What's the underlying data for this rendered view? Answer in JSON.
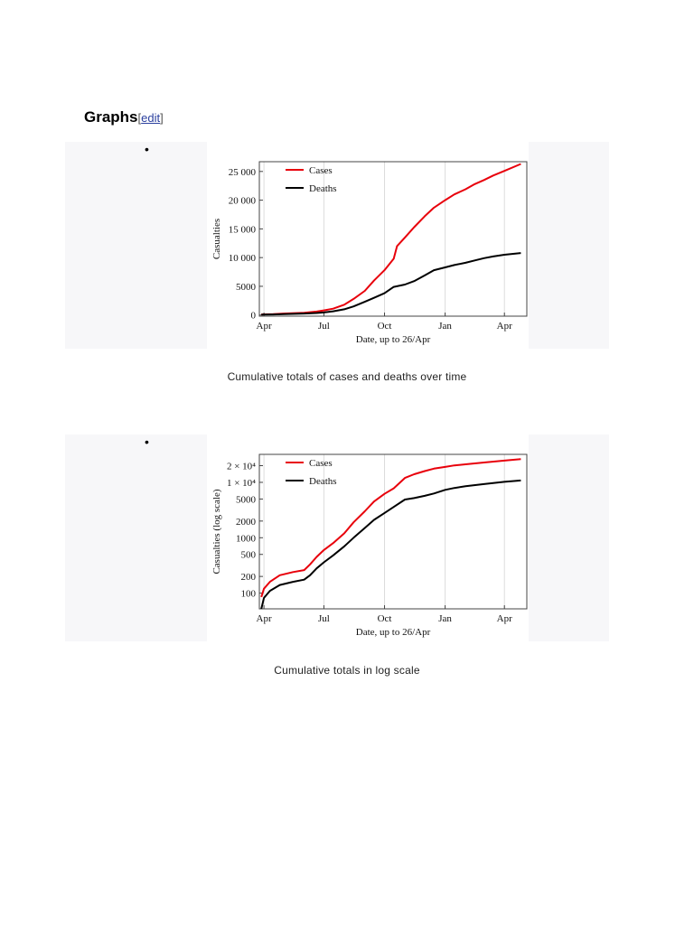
{
  "section": {
    "title": "Graphs",
    "edit_open": "[",
    "edit_link": "edit",
    "edit_close": "]"
  },
  "gallery": [
    {
      "bullet": "•",
      "caption": "Cumulative totals of cases and deaths over time"
    },
    {
      "bullet": "•",
      "caption": "Cumulative totals in log scale"
    }
  ],
  "chart_data": [
    {
      "type": "line",
      "xlabel": "Date, up to 26/Apr",
      "ylabel": "Casualties",
      "x_ticks": [
        "Apr",
        "Jul",
        "Oct",
        "Jan",
        "Apr"
      ],
      "x_tick_dates": [
        "2014-04-01",
        "2014-07-01",
        "2014-10-01",
        "2015-01-01",
        "2015-04-01"
      ],
      "x_range": [
        "2014-03-25",
        "2015-05-05"
      ],
      "y_ticks": [
        "0",
        "5000",
        "10 000",
        "15 000",
        "20 000",
        "25 000"
      ],
      "y_tick_values": [
        0,
        5000,
        10000,
        15000,
        20000,
        25000
      ],
      "ylim": [
        -200,
        26700
      ],
      "y_scale": "linear",
      "grid": "vertical",
      "legend_position": "top-left",
      "series": [
        {
          "name": "Cases",
          "color": "#e8000b",
          "x": [
            "2014-03-28",
            "2014-04-15",
            "2014-05-01",
            "2014-06-01",
            "2014-06-20",
            "2014-07-01",
            "2014-07-15",
            "2014-08-01",
            "2014-08-15",
            "2014-09-01",
            "2014-09-15",
            "2014-10-01",
            "2014-10-15",
            "2014-10-20",
            "2014-11-01",
            "2014-11-15",
            "2014-12-01",
            "2014-12-15",
            "2015-01-01",
            "2015-01-15",
            "2015-02-01",
            "2015-02-15",
            "2015-03-01",
            "2015-03-15",
            "2015-04-01",
            "2015-04-26"
          ],
          "y": [
            100,
            150,
            250,
            400,
            600,
            800,
            1100,
            1800,
            2800,
            4200,
            6000,
            7800,
            9800,
            12000,
            13500,
            15300,
            17200,
            18700,
            20000,
            21000,
            21900,
            22800,
            23500,
            24300,
            25100,
            26300
          ]
        },
        {
          "name": "Deaths",
          "color": "#000000",
          "x": [
            "2014-03-28",
            "2014-04-15",
            "2014-05-01",
            "2014-06-01",
            "2014-06-20",
            "2014-07-01",
            "2014-07-15",
            "2014-08-01",
            "2014-08-15",
            "2014-09-01",
            "2014-09-15",
            "2014-10-01",
            "2014-10-15",
            "2014-11-01",
            "2014-11-15",
            "2014-12-01",
            "2014-12-15",
            "2015-01-01",
            "2015-01-15",
            "2015-02-01",
            "2015-02-15",
            "2015-03-01",
            "2015-03-15",
            "2015-04-01",
            "2015-04-26"
          ],
          "y": [
            60,
            100,
            150,
            250,
            350,
            450,
            650,
            1000,
            1500,
            2300,
            3000,
            3800,
            4900,
            5300,
            5900,
            6900,
            7800,
            8300,
            8700,
            9100,
            9500,
            9900,
            10200,
            10500,
            10800
          ]
        }
      ]
    },
    {
      "type": "line",
      "xlabel": "Date, up to 26/Apr",
      "ylabel": "Casualties (log scale)",
      "x_ticks": [
        "Apr",
        "Jul",
        "Oct",
        "Jan",
        "Apr"
      ],
      "x_tick_dates": [
        "2014-04-01",
        "2014-07-01",
        "2014-10-01",
        "2015-01-01",
        "2015-04-01"
      ],
      "x_range": [
        "2014-03-25",
        "2015-05-05"
      ],
      "y_ticks": [
        "100",
        "200",
        "500",
        "1000",
        "2000",
        "5000",
        "1 × 10⁴",
        "2 × 10⁴"
      ],
      "y_tick_values": [
        100,
        200,
        500,
        1000,
        2000,
        5000,
        10000,
        20000
      ],
      "ylim": [
        52,
        32000
      ],
      "y_scale": "log",
      "grid": "vertical",
      "legend_position": "top-left",
      "series": [
        {
          "name": "Cases",
          "color": "#e8000b",
          "x": [
            "2014-03-28",
            "2014-04-01",
            "2014-04-10",
            "2014-04-25",
            "2014-05-15",
            "2014-06-01",
            "2014-06-10",
            "2014-06-20",
            "2014-07-01",
            "2014-07-15",
            "2014-08-01",
            "2014-08-15",
            "2014-09-01",
            "2014-09-15",
            "2014-10-01",
            "2014-10-15",
            "2014-11-01",
            "2014-11-15",
            "2014-12-01",
            "2014-12-15",
            "2015-01-01",
            "2015-01-15",
            "2015-02-01",
            "2015-03-01",
            "2015-04-01",
            "2015-04-26"
          ],
          "y": [
            85,
            120,
            160,
            210,
            240,
            260,
            330,
            450,
            600,
            800,
            1200,
            1900,
            3000,
            4500,
            6200,
            7800,
            12000,
            14000,
            16000,
            17700,
            19000,
            20200,
            21200,
            22800,
            24700,
            26300
          ]
        },
        {
          "name": "Deaths",
          "color": "#000000",
          "x": [
            "2014-03-28",
            "2014-04-01",
            "2014-04-10",
            "2014-04-25",
            "2014-05-15",
            "2014-06-01",
            "2014-06-10",
            "2014-06-20",
            "2014-07-01",
            "2014-07-15",
            "2014-08-01",
            "2014-08-15",
            "2014-09-01",
            "2014-09-15",
            "2014-10-01",
            "2014-10-15",
            "2014-11-01",
            "2014-11-15",
            "2014-12-01",
            "2014-12-15",
            "2015-01-01",
            "2015-01-15",
            "2015-02-01",
            "2015-03-01",
            "2015-04-01",
            "2015-04-26"
          ],
          "y": [
            52,
            82,
            110,
            140,
            160,
            175,
            210,
            280,
            360,
            480,
            700,
            1000,
            1500,
            2100,
            2800,
            3600,
            4900,
            5200,
            5700,
            6300,
            7300,
            7900,
            8500,
            9300,
            10200,
            10800
          ]
        }
      ]
    }
  ]
}
